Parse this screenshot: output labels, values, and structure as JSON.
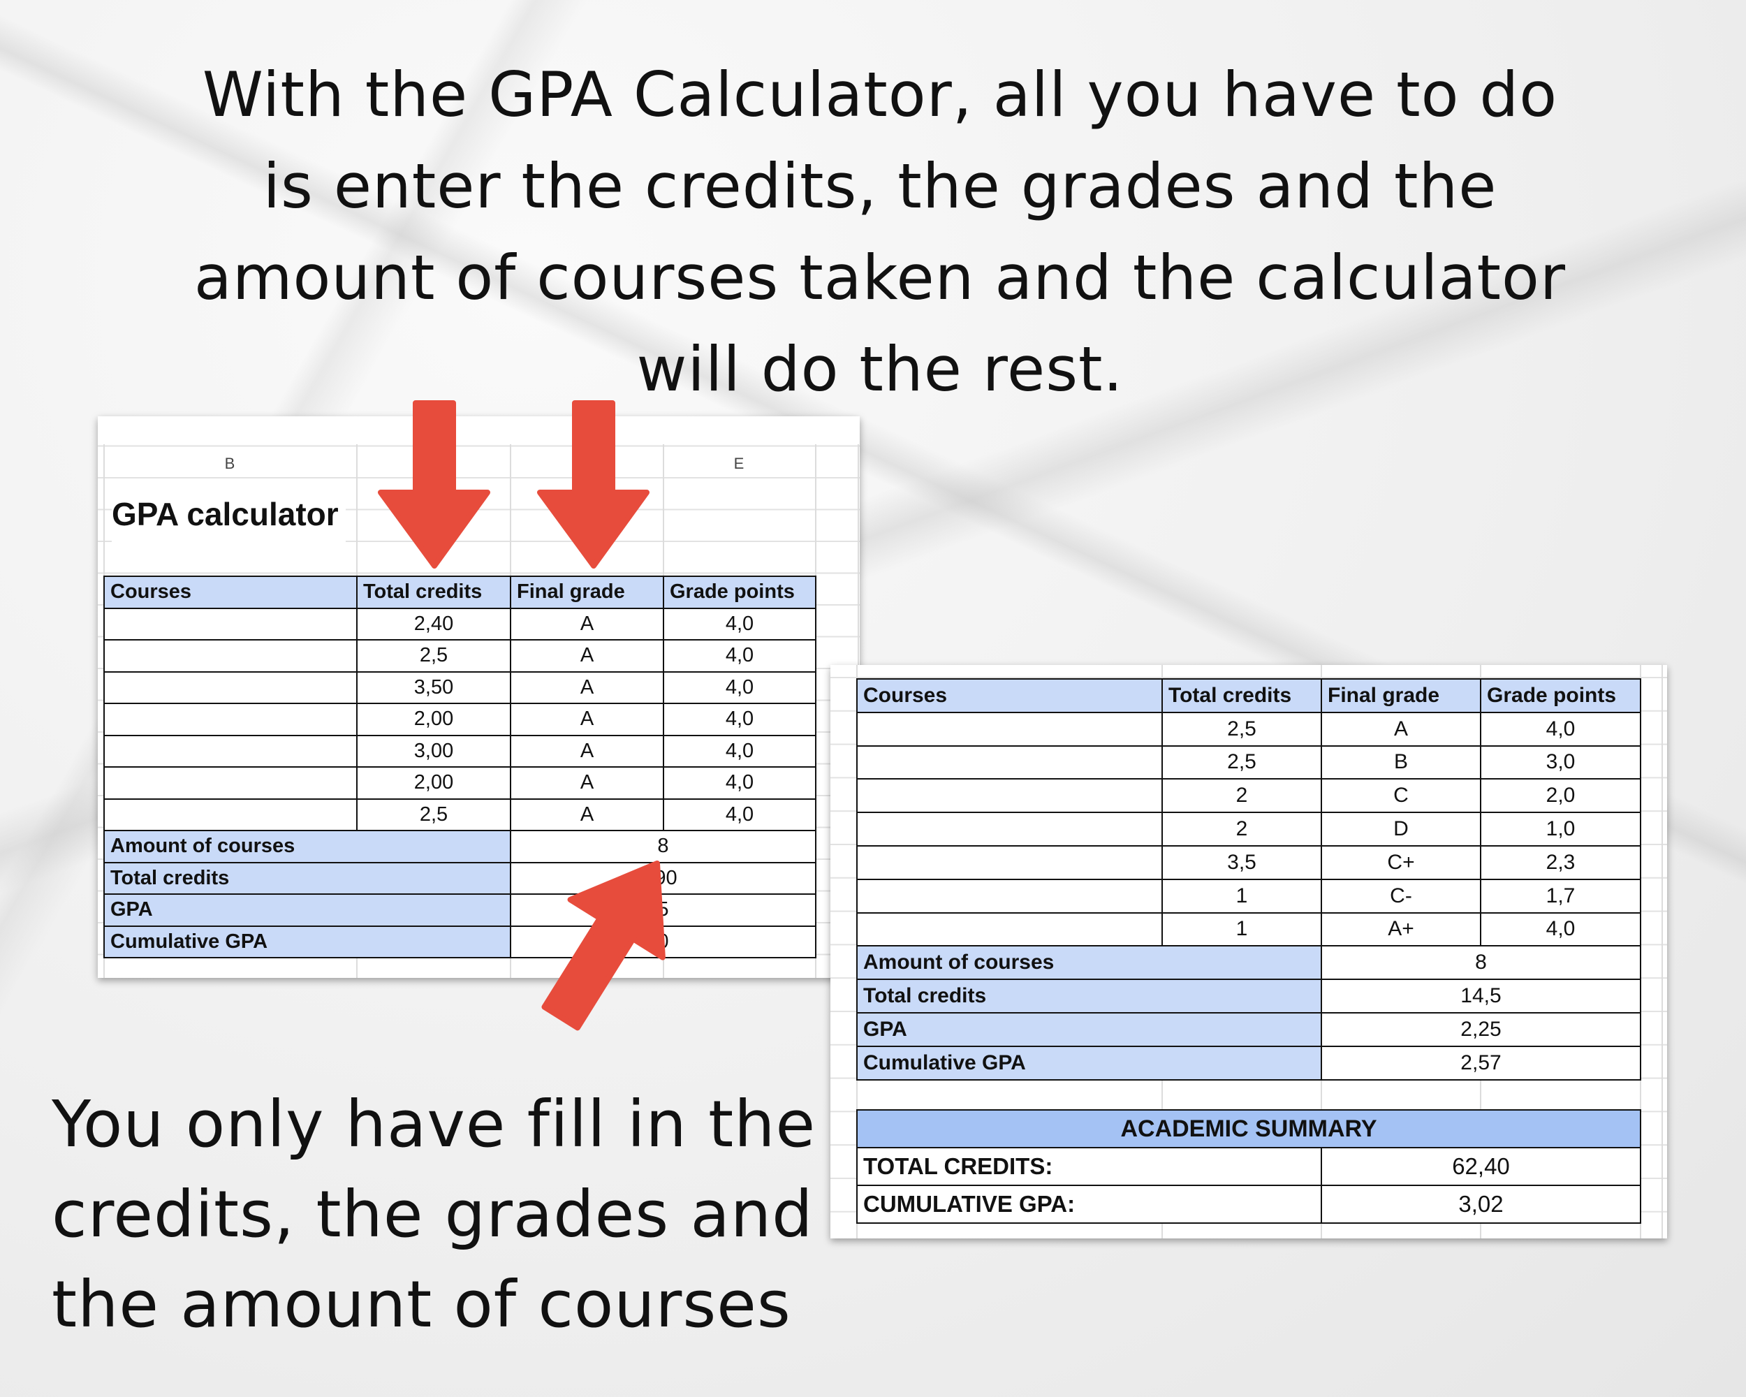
{
  "headline": [
    "With the GPA Calculator, all you have to do",
    "is enter the credits, the grades and the",
    "amount of courses taken and the calculator",
    "will do the rest."
  ],
  "subline": [
    "You only have fill in the",
    "credits, the grades and",
    "the amount of courses"
  ],
  "colors": {
    "arrow": "#e74c3c",
    "header_fill": "#c9daf8",
    "summary_fill": "#a4c2f4"
  },
  "left_sheet": {
    "column_headers": [
      "B",
      "",
      "",
      "E"
    ],
    "title": "GPA calculator",
    "headers": [
      "Courses",
      "Total credits",
      "Final grade",
      "Grade points"
    ],
    "rows": [
      [
        "",
        "2,40",
        "A",
        "4,0"
      ],
      [
        "",
        "2,5",
        "A",
        "4,0"
      ],
      [
        "",
        "3,50",
        "A",
        "4,0"
      ],
      [
        "",
        "2,00",
        "A",
        "4,0"
      ],
      [
        "",
        "3,00",
        "A",
        "4,0"
      ],
      [
        "",
        "2,00",
        "A",
        "4,0"
      ],
      [
        "",
        "2,5",
        "A",
        "4,0"
      ]
    ],
    "summary": [
      {
        "label": "Amount of courses",
        "value": "8"
      },
      {
        "label": "Total credits",
        "value": ",90"
      },
      {
        "label": "GPA",
        "value": "5"
      },
      {
        "label": "Cumulative GPA",
        "value": "0"
      }
    ]
  },
  "right_sheet": {
    "headers": [
      "Courses",
      "Total credits",
      "Final grade",
      "Grade points"
    ],
    "rows": [
      [
        "",
        "2,5",
        "A",
        "4,0"
      ],
      [
        "",
        "2,5",
        "B",
        "3,0"
      ],
      [
        "",
        "2",
        "C",
        "2,0"
      ],
      [
        "",
        "2",
        "D",
        "1,0"
      ],
      [
        "",
        "3,5",
        "C+",
        "2,3"
      ],
      [
        "",
        "1",
        "C-",
        "1,7"
      ],
      [
        "",
        "1",
        "A+",
        "4,0"
      ]
    ],
    "summary": [
      {
        "label": "Amount of courses",
        "value": "8"
      },
      {
        "label": "Total credits",
        "value": "14,5"
      },
      {
        "label": "GPA",
        "value": "2,25"
      },
      {
        "label": "Cumulative GPA",
        "value": "2,57"
      }
    ],
    "academic_summary": {
      "title": "ACADEMIC SUMMARY",
      "rows": [
        {
          "label": "TOTAL CREDITS:",
          "value": "62,40"
        },
        {
          "label": "CUMULATIVE GPA:",
          "value": "3,02"
        }
      ]
    }
  }
}
